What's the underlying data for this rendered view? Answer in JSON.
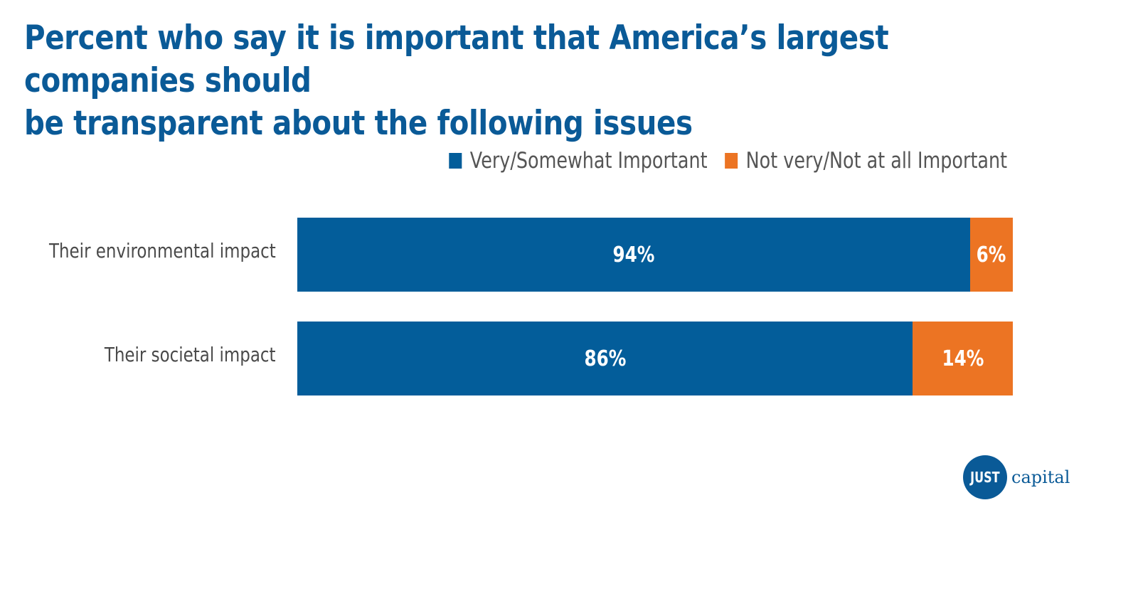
{
  "chart_data": {
    "type": "bar",
    "orientation": "horizontal",
    "stacked": true,
    "title": "Percent who say it is important that America’s largest companies should be transparent about the following issues",
    "categories": [
      "Their environmental impact",
      "Their societal impact"
    ],
    "series": [
      {
        "name": "Very/Somewhat Important",
        "color": "#035d9a",
        "values": [
          94,
          86
        ],
        "labels": [
          "94%",
          "86%"
        ]
      },
      {
        "name": "Not very/Not at all Important",
        "color": "#ec7423",
        "values": [
          6,
          14
        ],
        "labels": [
          "6%",
          "14%"
        ]
      }
    ],
    "xlim": [
      0,
      100
    ],
    "xlabel": "",
    "ylabel": "",
    "grid": false,
    "legend_position": "top-right",
    "unit": "%"
  },
  "title_line1": "Percent who say it is important that America’s largest companies should",
  "title_line2": "be transparent about the following issues",
  "colors": {
    "title": "#0a5a97",
    "text": "#4a4a4a",
    "brand": "#0a5a97"
  },
  "logo": {
    "mark": "JUST",
    "text": "capital"
  }
}
